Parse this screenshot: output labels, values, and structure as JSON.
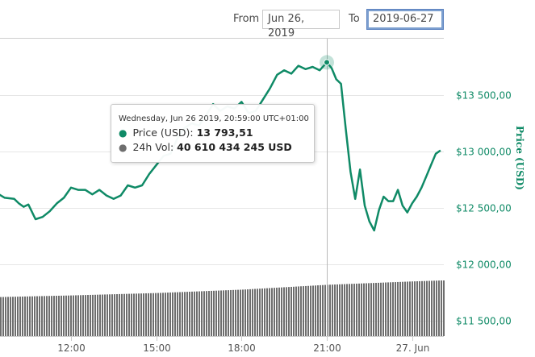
{
  "date_range": {
    "from_label": "From",
    "from_value": "Jun 26, 2019",
    "to_label": "To",
    "to_value": "2019-06-27"
  },
  "tooltip": {
    "date": "Wednesday, Jun 26 2019, 20:59:00 UTC+01:00",
    "price_label": "Price (USD):",
    "price_value": "13 793,51",
    "vol_label": "24h Vol:",
    "vol_value": "40 610 434 245 USD"
  },
  "colors": {
    "price_line": "#0f8a66",
    "volume_bars": "#6e6e6e",
    "grid": "#e6e6e6",
    "axis_label": "#0f8a66"
  },
  "chart_data": {
    "type": "line",
    "x_tick_labels": [
      "12:00",
      "15:00",
      "18:00",
      "21:00",
      "27. Jun"
    ],
    "y_axis_title": "Price (USD)",
    "y_tick_labels": [
      "$11 500,00",
      "$12 000,00",
      "$12 500,00",
      "$13 000,00",
      "$13 500,00"
    ],
    "ylim": [
      11500,
      14000
    ],
    "grid": true,
    "highlight_time": "21:00",
    "series": [
      {
        "name": "Price (USD)",
        "x": [
          "09:00",
          "09:20",
          "09:40",
          "10:00",
          "10:10",
          "10:20",
          "10:30",
          "10:45",
          "11:00",
          "11:15",
          "11:30",
          "11:45",
          "12:00",
          "12:15",
          "12:30",
          "12:45",
          "13:00",
          "13:15",
          "13:30",
          "13:45",
          "14:00",
          "14:15",
          "14:30",
          "14:45",
          "15:00",
          "15:15",
          "15:30",
          "15:45",
          "16:00",
          "16:15",
          "16:30",
          "16:45",
          "17:00",
          "17:15",
          "17:30",
          "17:45",
          "18:00",
          "18:15",
          "18:30",
          "18:45",
          "19:00",
          "19:15",
          "19:30",
          "19:45",
          "20:00",
          "20:15",
          "20:30",
          "20:45",
          "21:00",
          "21:10",
          "21:20",
          "21:30",
          "21:40",
          "21:50",
          "22:00",
          "22:10",
          "22:20",
          "22:30",
          "22:40",
          "22:50",
          "23:00",
          "23:10",
          "23:20",
          "23:30",
          "23:40",
          "23:50",
          "00:00",
          "00:10",
          "00:20",
          "00:30",
          "00:40",
          "00:50",
          "01:00"
        ],
        "y": [
          12620,
          12640,
          12590,
          12580,
          12540,
          12510,
          12530,
          12400,
          12420,
          12470,
          12540,
          12590,
          12680,
          12660,
          12660,
          12620,
          12660,
          12610,
          12580,
          12610,
          12700,
          12680,
          12700,
          12800,
          12880,
          12960,
          12980,
          13120,
          13210,
          13250,
          13230,
          13320,
          13420,
          13360,
          13400,
          13380,
          13440,
          13340,
          13360,
          13460,
          13560,
          13680,
          13720,
          13690,
          13760,
          13730,
          13750,
          13720,
          13790,
          13740,
          13640,
          13600,
          13200,
          12820,
          12580,
          12840,
          12520,
          12380,
          12300,
          12480,
          12600,
          12560,
          12560,
          12660,
          12520,
          12460,
          12540,
          12600,
          12680,
          12780,
          12880,
          12980,
          13010
        ]
      },
      {
        "name": "24h Vol",
        "x": [
          "09:00",
          "12:00",
          "15:00",
          "18:00",
          "21:00",
          "00:00",
          "01:00"
        ],
        "y": [
          38.0,
          38.4,
          38.9,
          39.6,
          40.6,
          41.3,
          41.5
        ]
      }
    ]
  }
}
